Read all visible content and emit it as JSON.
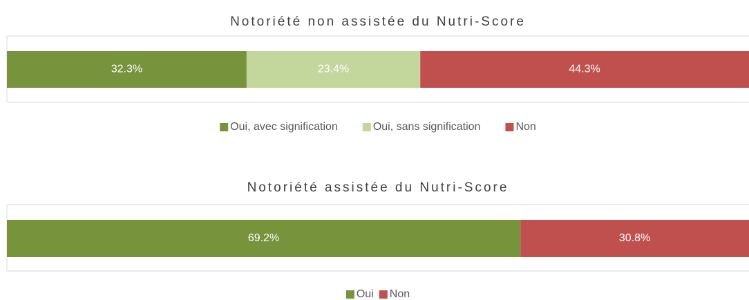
{
  "chart_data": [
    {
      "type": "bar",
      "orientation": "horizontal",
      "stacked": true,
      "title": "Notoriété non assistée du Nutri-Score",
      "xlim": [
        0,
        100
      ],
      "series": [
        {
          "name": "Oui, avec signification",
          "color": "#77933c",
          "values": [
            32.3
          ],
          "value_labels": [
            "32.3%"
          ]
        },
        {
          "name": "Oui, sans signification",
          "color": "#c3d69b",
          "values": [
            23.4
          ],
          "value_labels": [
            "23.4%"
          ]
        },
        {
          "name": "Non",
          "color": "#c0504d",
          "values": [
            44.3
          ],
          "value_labels": [
            "44.3%"
          ]
        }
      ],
      "legend": "bottom"
    },
    {
      "type": "bar",
      "orientation": "horizontal",
      "stacked": true,
      "title": "Notoriété assistée du Nutri-Score",
      "xlim": [
        0,
        100
      ],
      "series": [
        {
          "name": "Oui",
          "color": "#77933c",
          "values": [
            69.2
          ],
          "value_labels": [
            "69.2%"
          ]
        },
        {
          "name": "Non",
          "color": "#c0504d",
          "values": [
            30.8
          ],
          "value_labels": [
            "30.8%"
          ]
        }
      ],
      "legend": "bottom"
    }
  ]
}
